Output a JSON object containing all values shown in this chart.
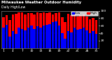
{
  "title": "Milwaukee Weather Outdoor Humidity",
  "subtitle": "Daily High/Low",
  "high_values": [
    82,
    88,
    75,
    90,
    92,
    95,
    95,
    91,
    94,
    93,
    90,
    95,
    93,
    95,
    94,
    95,
    90,
    93,
    95,
    82,
    70,
    92,
    88,
    91,
    85,
    88,
    90,
    85,
    78,
    80,
    75
  ],
  "low_values": [
    55,
    62,
    30,
    45,
    38,
    55,
    52,
    48,
    55,
    60,
    52,
    58,
    55,
    60,
    62,
    65,
    70,
    72,
    60,
    40,
    25,
    45,
    42,
    55,
    50,
    52,
    55,
    48,
    40,
    45,
    38
  ],
  "high_color": "#ff0000",
  "low_color": "#0000ff",
  "bg_color": "#000000",
  "plot_bg": "#000000",
  "ylim": [
    0,
    100
  ],
  "title_fontsize": 3.8,
  "tick_fontsize": 3.2,
  "legend_fontsize": 3.2,
  "bar_width": 0.4,
  "yticks": [
    20,
    40,
    60,
    80,
    100
  ],
  "ytick_color": "#ffffff",
  "spine_color": "#888888"
}
